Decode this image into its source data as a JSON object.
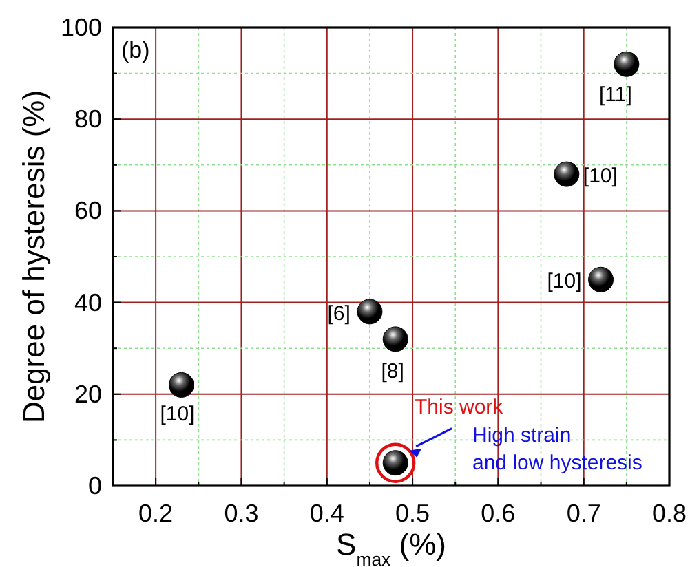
{
  "chart_data": {
    "type": "scatter",
    "xlabel": "S$_{max}$ (%)",
    "ylabel": "Degree of hysteresis (%)",
    "x": [
      0.23,
      0.45,
      0.48,
      0.48,
      0.68,
      0.72,
      0.75
    ],
    "series": [
      {
        "color": "#000000",
        "values": [
          22,
          38,
          32,
          5,
          68,
          45,
          92
        ]
      }
    ],
    "marker": "circle",
    "grid": true,
    "xlim": [
      0.15,
      0.8
    ],
    "xticks": [
      0.2,
      {
        "value": 0.25,
        "label": null
      },
      0.3,
      {
        "value": 0.35,
        "label": null
      },
      0.4,
      {
        "value": 0.45,
        "label": null
      },
      0.5,
      {
        "value": 0.55,
        "label": null
      },
      0.6,
      {
        "value": 0.65,
        "label": null
      },
      0.7,
      {
        "value": 0.75,
        "label": null
      },
      0.8
    ],
    "ylim": [
      0,
      100
    ],
    "yticks": [
      0,
      {
        "value": 10,
        "label": null
      },
      20,
      {
        "value": 30,
        "label": null
      },
      40,
      {
        "value": 50,
        "label": null
      },
      60,
      {
        "value": 70,
        "label": null
      },
      80,
      {
        "value": 90,
        "label": null
      },
      100
    ],
    "annotations": [
      "(b)",
      {
        "text": "[10]",
        "x": 0.23,
        "y": 22
      },
      {
        "text": "[6]",
        "x": 0.45,
        "y": 38
      },
      {
        "text": "[8]",
        "x": 0.48,
        "y": 32
      },
      {
        "text": "[10]",
        "x": 0.68,
        "y": 68
      },
      {
        "text": "[10]",
        "x": 0.72,
        "y": 45
      },
      {
        "text": "[11]",
        "x": 0.75,
        "y": 92
      },
      {
        "text": "This work",
        "x": 0.48,
        "y": 5
      },
      "High strain\nand low hysteresis"
    ]
  }
}
